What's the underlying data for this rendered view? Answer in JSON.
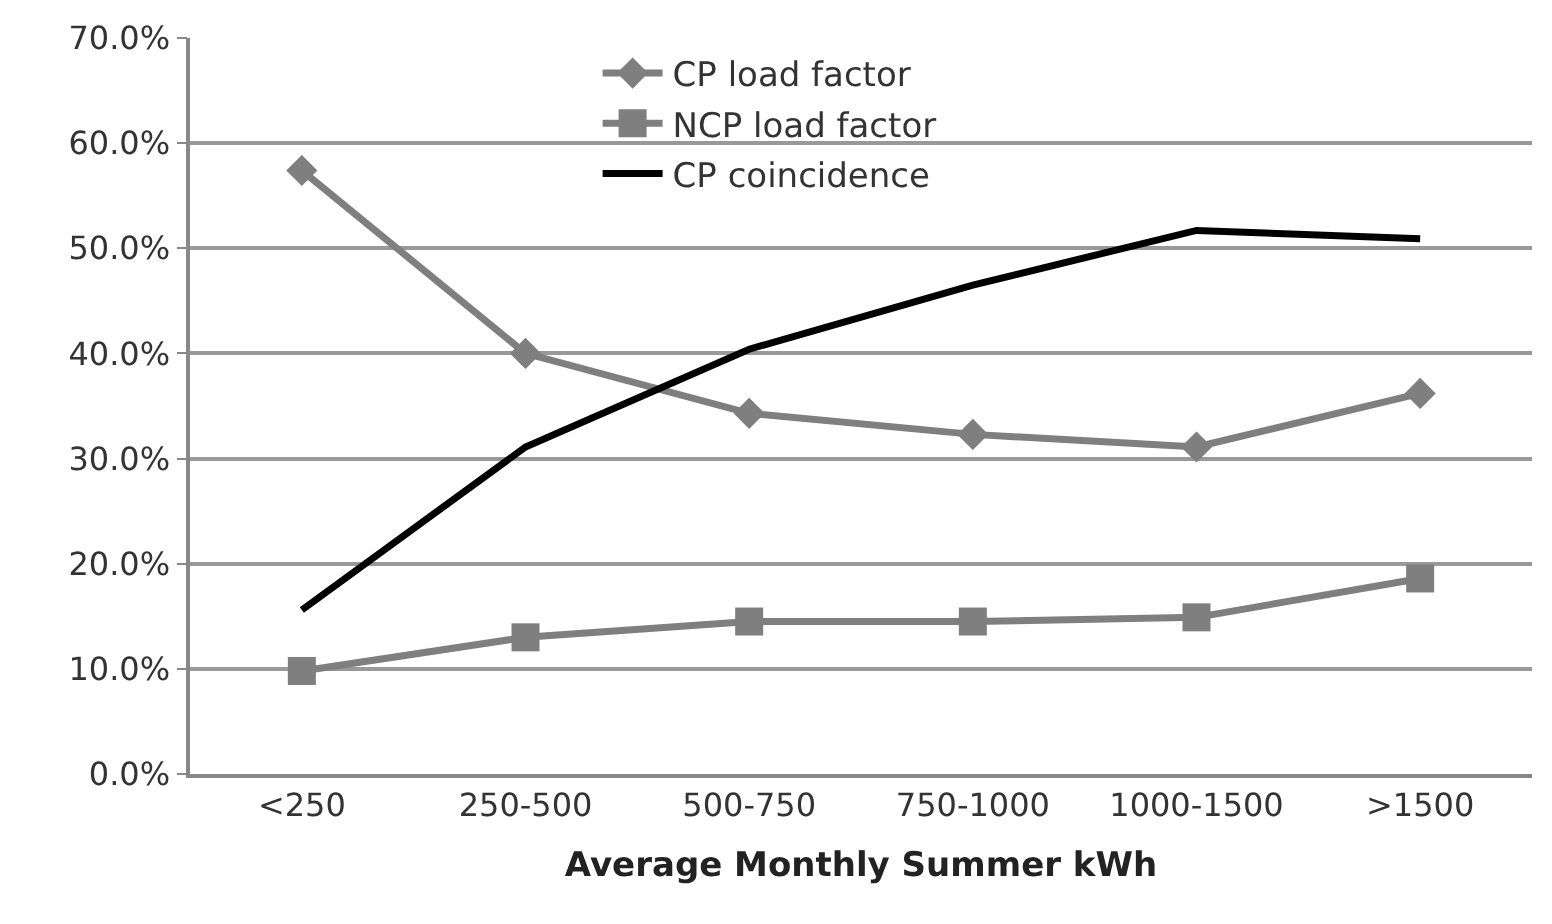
{
  "chart_data": {
    "type": "line",
    "xlabel": "Average Monthly Summer kWh",
    "categories": [
      "<250",
      "250-500",
      "500-750",
      "750-1000",
      "1000-1500",
      ">1500"
    ],
    "series": [
      {
        "name": "CP load factor",
        "color": "#7f7f7f",
        "marker": "diamond",
        "values": [
          57.4,
          40.0,
          34.3,
          32.3,
          31.1,
          36.2
        ]
      },
      {
        "name": "NCP load factor",
        "color": "#7f7f7f",
        "marker": "square",
        "values": [
          9.8,
          13.0,
          14.5,
          14.5,
          14.9,
          18.6
        ]
      },
      {
        "name": "CP coincidence",
        "color": "#000000",
        "marker": "none",
        "values": [
          15.6,
          31.1,
          40.4,
          46.5,
          51.7,
          50.9
        ]
      }
    ],
    "ylim": [
      0,
      70
    ],
    "yticks": [
      {
        "value": 0,
        "label": "0.0%"
      },
      {
        "value": 10,
        "label": "10.0%"
      },
      {
        "value": 20,
        "label": "20.0%"
      },
      {
        "value": 30,
        "label": "30.0%"
      },
      {
        "value": 40,
        "label": "40.0%"
      },
      {
        "value": 50,
        "label": "50.0%"
      },
      {
        "value": 60,
        "label": "60.0%"
      },
      {
        "value": 70,
        "label": "70.0%"
      }
    ],
    "grid": "y",
    "legend": "top"
  }
}
